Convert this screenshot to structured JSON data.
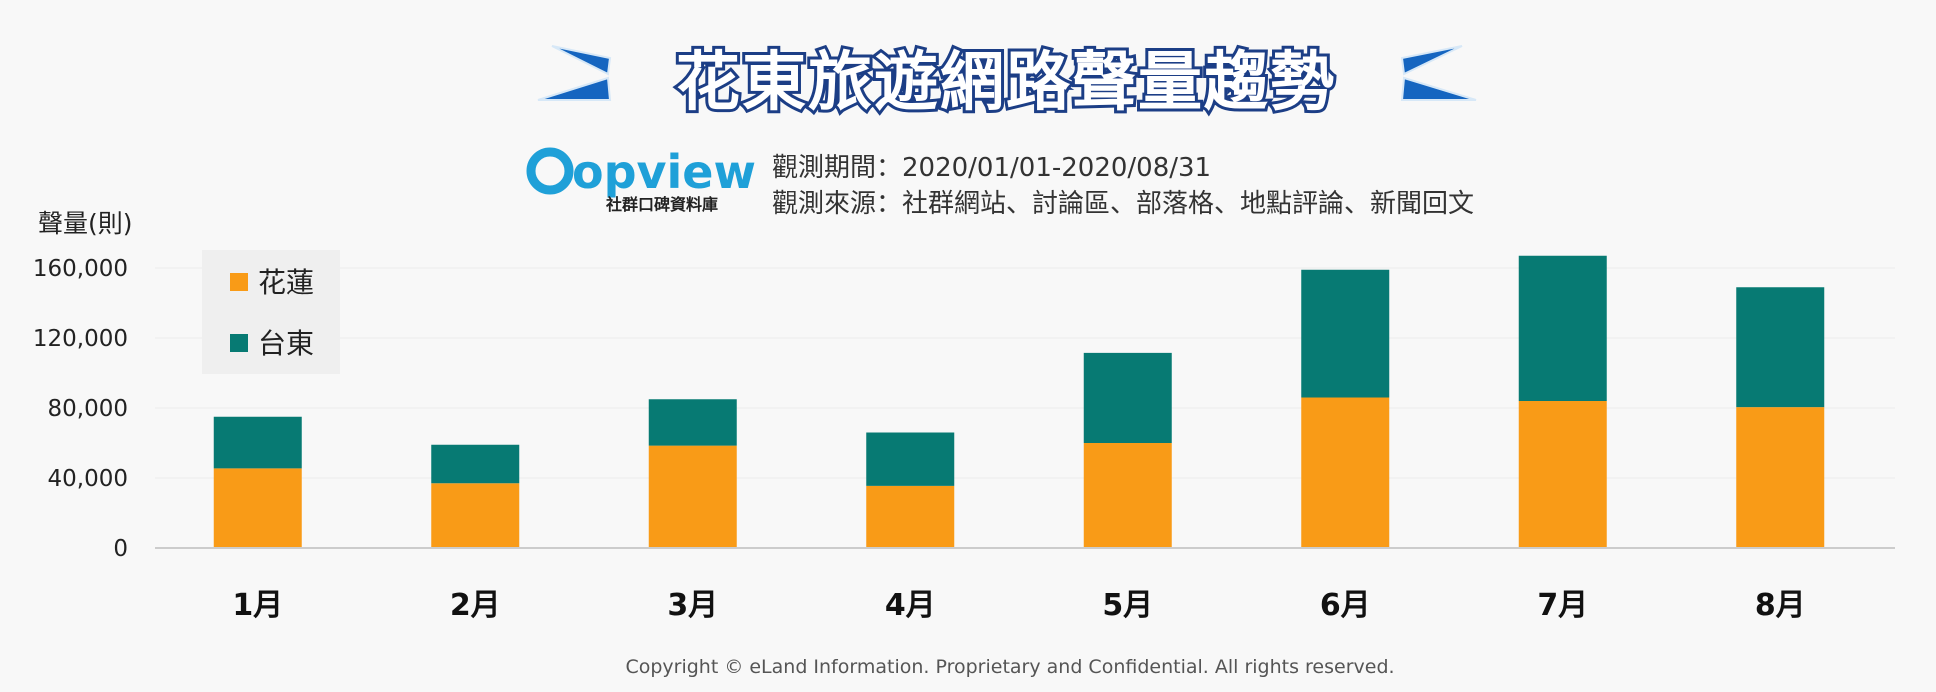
{
  "header": {
    "title": "花東旅遊網路聲量趨勢",
    "logo_text": "opview",
    "logo_subtitle": "社群口碑資料庫",
    "period": "觀測期間：2020/01/01-2020/08/31",
    "source": "觀測來源：社群網站、討論區、部落格、地點評論、新聞回文"
  },
  "footer": {
    "copyright": "Copyright © eLand Information. Proprietary and Confidential. All rights reserved."
  },
  "colors": {
    "hualien": "#f99b17",
    "taitung": "#077a73",
    "title_arrow": "#1565c0"
  },
  "chart_data": {
    "type": "bar",
    "stacked": true,
    "title": "花東旅遊網路聲量趨勢",
    "xlabel": "",
    "ylabel": "聲量(則)",
    "ylim": [
      0,
      160000
    ],
    "yticks": [
      0,
      40000,
      80000,
      120000,
      160000
    ],
    "ytick_labels": [
      "0",
      "40,000",
      "80,000",
      "120,000",
      "160,000"
    ],
    "grid": true,
    "legend": "top-left",
    "categories": [
      "1月",
      "2月",
      "3月",
      "4月",
      "5月",
      "6月",
      "7月",
      "8月"
    ],
    "series": [
      {
        "name": "花蓮",
        "values": [
          45500,
          37000,
          58500,
          35500,
          60000,
          86000,
          84000,
          80500
        ]
      },
      {
        "name": "台東",
        "values": [
          29500,
          22000,
          26500,
          30500,
          51500,
          73000,
          83000,
          68500
        ]
      }
    ]
  }
}
